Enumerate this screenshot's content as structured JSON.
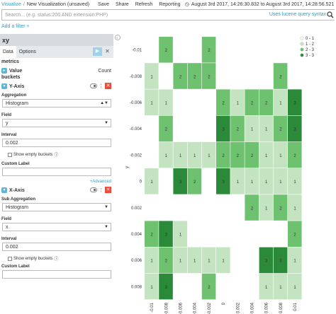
{
  "nav": {
    "crumb_root": "Visualize",
    "crumb_current": "New Visualization (unsaved)",
    "menu": [
      "Save",
      "Share",
      "Refresh",
      "Reporting"
    ],
    "time_range": "August 3rd 2017, 14:26:30.832 to August 3rd 2017, 14:28:56.521"
  },
  "search": {
    "placeholder": "Search... (e.g. status:200 AND extension:PHP)",
    "lucene_link": "Uses lucene query syntax",
    "add_filter": "Add a filter +"
  },
  "sidebar": {
    "title": "xy",
    "tabs": [
      "Data",
      "Options"
    ],
    "metrics_title": "metrics",
    "metric_value_label": "Value",
    "metric_value_agg": "Count",
    "buckets_title": "buckets",
    "y_axis": {
      "label": "Y-Axis",
      "aggregation_label": "Aggregation",
      "aggregation_value": "Histogram",
      "field_label": "Field",
      "field_value": "y",
      "interval_label": "Interval",
      "interval_value": "0.002",
      "show_empty_label": "Show empty buckets",
      "custom_label_label": "Custom Label"
    },
    "advanced_link": "+Advanced",
    "x_axis": {
      "label": "X-Axis",
      "sub_aggregation_label": "Sub Aggregation",
      "sub_aggregation_value": "Histogram",
      "field_label": "Field",
      "field_value": "x",
      "interval_label": "Interval",
      "interval_value": "0.002",
      "show_empty_label": "Show empty buckets",
      "custom_label_label": "Custom Label"
    }
  },
  "chart_data": {
    "type": "heatmap",
    "ylabel": "y",
    "xlabel": "",
    "y_categories": [
      "-0.01",
      "-0.008",
      "-0.006",
      "-0.004",
      "-0.002",
      "0",
      "0.002",
      "0.004",
      "0.006",
      "0.008"
    ],
    "x_categories": [
      "-0.01",
      "-0.008",
      "-0.006",
      "-0.004",
      "-0.002",
      "0",
      "0.002",
      "0.004",
      "0.006",
      "0.008",
      "0.01"
    ],
    "legend": [
      {
        "label": "0 - 1",
        "color": "#f2f8f2"
      },
      {
        "label": "1 - 2",
        "color": "#c4e4c1"
      },
      {
        "label": "2 - 3",
        "color": "#6ec16e"
      },
      {
        "label": "3 - 3",
        "color": "#2a8a3a"
      }
    ],
    "cells": [
      {
        "row": 0,
        "col": 1,
        "v": 2
      },
      {
        "row": 0,
        "col": 4,
        "v": 2
      },
      {
        "row": 1,
        "col": 0,
        "v": 1
      },
      {
        "row": 1,
        "col": 2,
        "v": 2
      },
      {
        "row": 1,
        "col": 3,
        "v": 2
      },
      {
        "row": 1,
        "col": 4,
        "v": 2
      },
      {
        "row": 1,
        "col": 9,
        "v": 2
      },
      {
        "row": 2,
        "col": 0,
        "v": 1
      },
      {
        "row": 2,
        "col": 1,
        "v": 1
      },
      {
        "row": 2,
        "col": 5,
        "v": 2
      },
      {
        "row": 2,
        "col": 6,
        "v": 1
      },
      {
        "row": 2,
        "col": 7,
        "v": 2
      },
      {
        "row": 2,
        "col": 8,
        "v": 2
      },
      {
        "row": 2,
        "col": 9,
        "v": 1
      },
      {
        "row": 2,
        "col": 10,
        "v": 3
      },
      {
        "row": 3,
        "col": 1,
        "v": 2
      },
      {
        "row": 3,
        "col": 5,
        "v": 3
      },
      {
        "row": 3,
        "col": 6,
        "v": 2
      },
      {
        "row": 3,
        "col": 7,
        "v": 1
      },
      {
        "row": 3,
        "col": 8,
        "v": 1
      },
      {
        "row": 3,
        "col": 9,
        "v": 2
      },
      {
        "row": 3,
        "col": 10,
        "v": 3
      },
      {
        "row": 4,
        "col": 1,
        "v": 1
      },
      {
        "row": 4,
        "col": 2,
        "v": 1
      },
      {
        "row": 4,
        "col": 3,
        "v": 1
      },
      {
        "row": 4,
        "col": 4,
        "v": 1
      },
      {
        "row": 4,
        "col": 5,
        "v": 2
      },
      {
        "row": 4,
        "col": 6,
        "v": 2
      },
      {
        "row": 4,
        "col": 7,
        "v": 2
      },
      {
        "row": 4,
        "col": 8,
        "v": 1
      },
      {
        "row": 4,
        "col": 9,
        "v": 1
      },
      {
        "row": 4,
        "col": 10,
        "v": 2
      },
      {
        "row": 5,
        "col": 0,
        "v": 1
      },
      {
        "row": 5,
        "col": 2,
        "v": 3
      },
      {
        "row": 5,
        "col": 3,
        "v": 2
      },
      {
        "row": 5,
        "col": 5,
        "v": 3
      },
      {
        "row": 5,
        "col": 6,
        "v": 1
      },
      {
        "row": 5,
        "col": 7,
        "v": 1
      },
      {
        "row": 5,
        "col": 8,
        "v": 1
      },
      {
        "row": 5,
        "col": 9,
        "v": 1
      },
      {
        "row": 5,
        "col": 10,
        "v": 1
      },
      {
        "row": 6,
        "col": 7,
        "v": 2
      },
      {
        "row": 6,
        "col": 8,
        "v": 1
      },
      {
        "row": 6,
        "col": 9,
        "v": 2
      },
      {
        "row": 6,
        "col": 10,
        "v": 1
      },
      {
        "row": 7,
        "col": 0,
        "v": 2
      },
      {
        "row": 7,
        "col": 1,
        "v": 3
      },
      {
        "row": 7,
        "col": 2,
        "v": 1
      },
      {
        "row": 7,
        "col": 10,
        "v": 2
      },
      {
        "row": 8,
        "col": 0,
        "v": 1
      },
      {
        "row": 8,
        "col": 1,
        "v": 2
      },
      {
        "row": 8,
        "col": 2,
        "v": 1
      },
      {
        "row": 8,
        "col": 3,
        "v": 1
      },
      {
        "row": 8,
        "col": 4,
        "v": 1
      },
      {
        "row": 8,
        "col": 5,
        "v": 1
      },
      {
        "row": 8,
        "col": 8,
        "v": 3
      },
      {
        "row": 8,
        "col": 9,
        "v": 3
      },
      {
        "row": 8,
        "col": 10,
        "v": 1
      },
      {
        "row": 9,
        "col": 0,
        "v": 1
      },
      {
        "row": 9,
        "col": 1,
        "v": 3
      },
      {
        "row": 9,
        "col": 4,
        "v": 2
      },
      {
        "row": 9,
        "col": 8,
        "v": 1
      },
      {
        "row": 9,
        "col": 9,
        "v": 1
      },
      {
        "row": 9,
        "col": 10,
        "v": 1
      }
    ]
  }
}
